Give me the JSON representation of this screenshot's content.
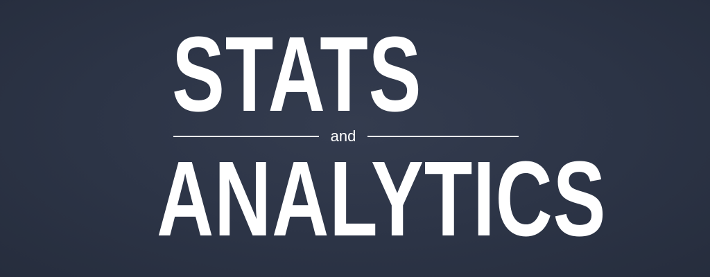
{
  "banner": {
    "line_one": "STATS",
    "connector": "and",
    "line_two": "ANALYTICS",
    "colors": {
      "background": "#2c3446",
      "text": "#ffffff"
    }
  }
}
